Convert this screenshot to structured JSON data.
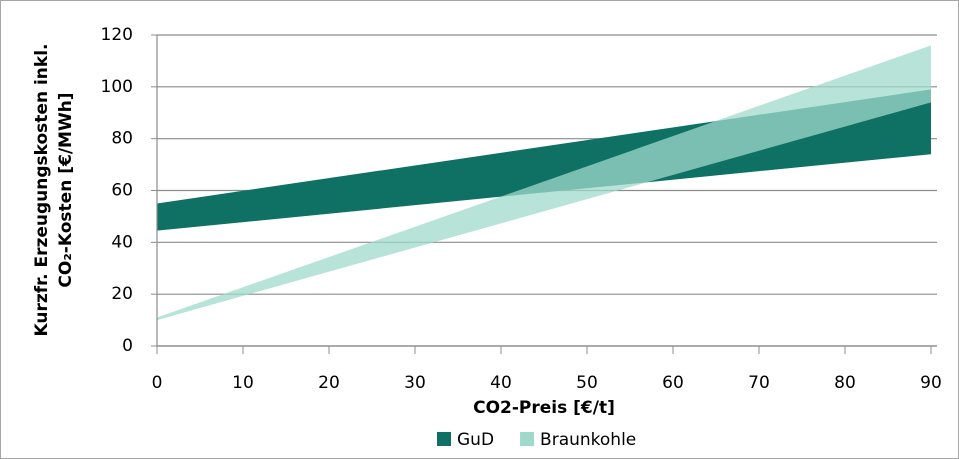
{
  "chart_data": {
    "type": "range-area",
    "y_label": [
      "Kurzfr. Erzeugungskosten inkl.",
      "CO₂-Kosten [€/MWh]"
    ],
    "x_label": "CO2-Preis [€/t]",
    "x": [
      0,
      90
    ],
    "series": [
      {
        "name": "GuD",
        "color": "#0e7163",
        "values": [
          [
            44.5,
            55
          ],
          [
            74,
            99
          ]
        ]
      },
      {
        "name": "Braunkohle",
        "color": "#9fd9cb",
        "values": [
          [
            10,
            11
          ],
          [
            94,
            116
          ]
        ]
      }
    ],
    "xlim": [
      0,
      90
    ],
    "xticks": [
      0,
      10,
      20,
      30,
      40,
      50,
      60,
      70,
      80,
      90
    ],
    "ylim": [
      0,
      120
    ],
    "yticks": [
      0,
      20,
      40,
      60,
      80,
      100,
      120
    ],
    "grid": true,
    "legend": "bottom"
  }
}
